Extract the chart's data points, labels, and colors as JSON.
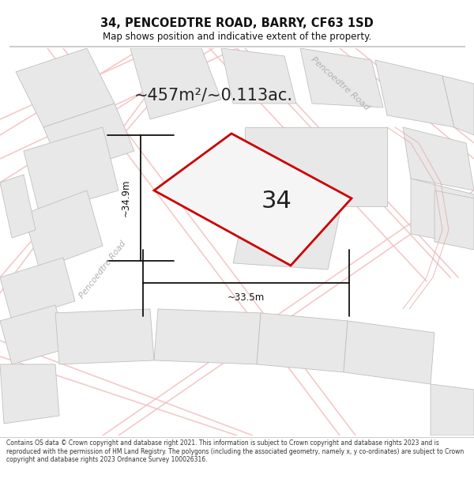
{
  "title": "34, PENCOEDTRE ROAD, BARRY, CF63 1SD",
  "subtitle": "Map shows position and indicative extent of the property.",
  "area_text": "~457m²/~0.113ac.",
  "label_34": "34",
  "dim_width": "~33.5m",
  "dim_height": "~34.9m",
  "road_label_top": "Pencoedtre Road",
  "road_label_left": "Pencoedtre Road",
  "footer": "Contains OS data © Crown copyright and database right 2021. This information is subject to Crown copyright and database rights 2023 and is reproduced with the permission of HM Land Registry. The polygons (including the associated geometry, namely x, y co-ordinates) are subject to Crown copyright and database rights 2023 Ordnance Survey 100026316.",
  "bg_color": "#f8f8f8",
  "plot_fill": "#f0f0f0",
  "plot_edge": "#cc0000",
  "parcel_fill": "#e8e8e8",
  "parcel_edge": "#c0c0c0",
  "road_color": "#f2c0c0",
  "road_edge_color": "#e8a8a8",
  "dim_color": "#111111",
  "title_color": "#111111",
  "label_color": "#222222",
  "footer_color": "#333333",
  "road_label_color": "#b0b0b0"
}
